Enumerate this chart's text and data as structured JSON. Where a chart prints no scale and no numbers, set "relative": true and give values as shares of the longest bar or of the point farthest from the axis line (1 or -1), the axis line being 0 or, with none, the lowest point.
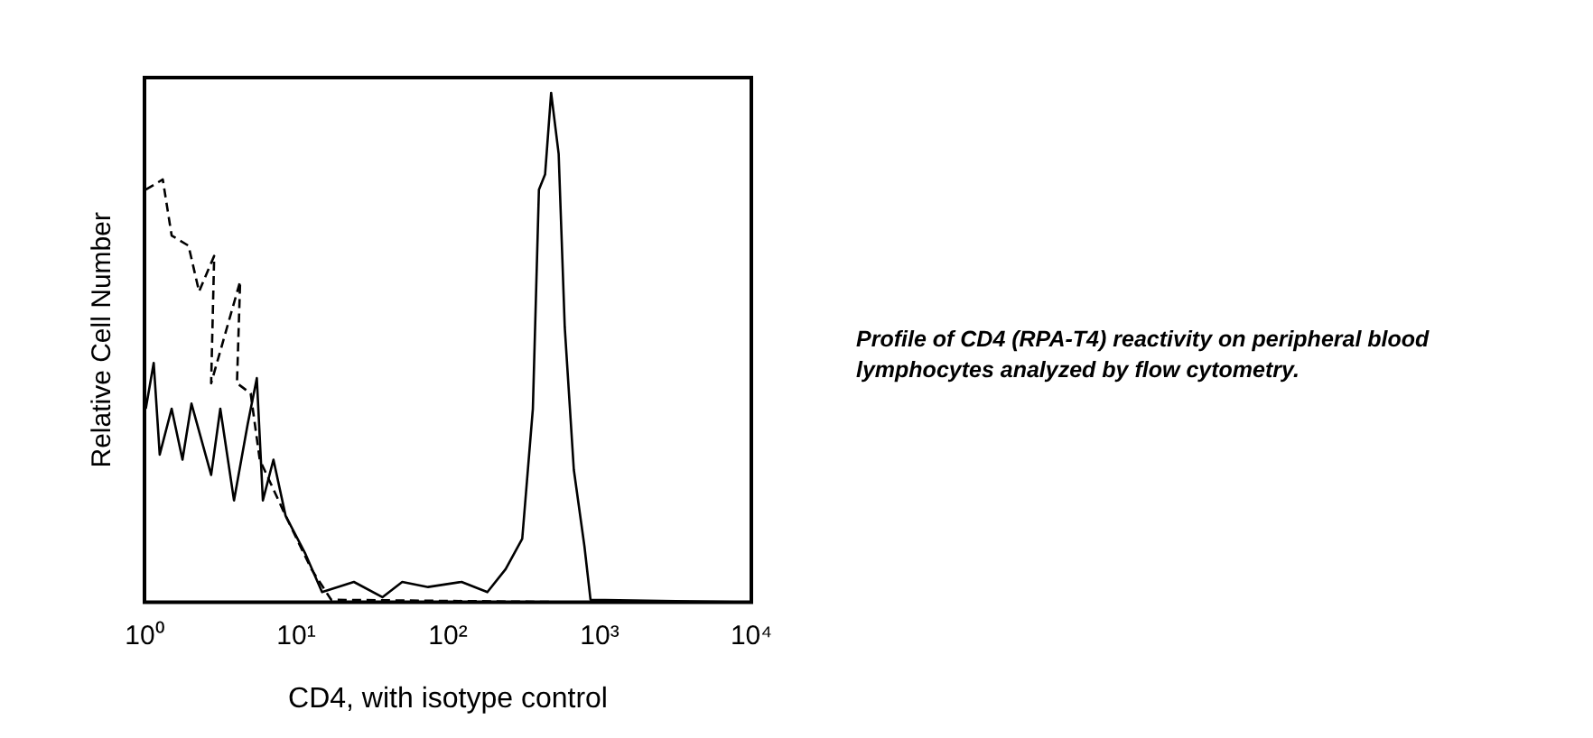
{
  "chart_data": {
    "type": "line",
    "relative": true,
    "xlabel": "CD4, with isotype control",
    "ylabel": "Relative Cell Number",
    "log": "x",
    "xlim": [
      1,
      10000
    ],
    "xticks": [
      {
        "value": 1,
        "label": "10⁰"
      },
      {
        "value": 10,
        "label": "10¹"
      },
      {
        "value": 100,
        "label": "10²"
      },
      {
        "value": 1000,
        "label": "10³"
      },
      {
        "value": 10000,
        "label": "10⁴"
      }
    ],
    "grid": false,
    "legend": false,
    "marker": "none",
    "tick_labels": "x",
    "series": [
      {
        "color": "#000000",
        "line_style": "solid",
        "x": [
          1.02,
          1.15,
          1.26,
          1.51,
          1.78,
          2.04,
          2.75,
          3.16,
          3.89,
          4.79,
          5.5,
          6.03,
          7.08,
          8.51,
          11.5,
          14.8,
          24,
          37,
          50,
          74,
          123,
          182,
          240,
          309,
          363,
          398,
          437,
          479,
          537,
          589,
          676,
          794,
          871,
          9800
        ],
        "values": [
          0.38,
          0.47,
          0.29,
          0.38,
          0.28,
          0.39,
          0.25,
          0.38,
          0.2,
          0.35,
          0.44,
          0.2,
          0.28,
          0.17,
          0.095,
          0.02,
          0.04,
          0.01,
          0.04,
          0.03,
          0.04,
          0.02,
          0.065,
          0.125,
          0.38,
          0.81,
          0.84,
          1,
          0.88,
          0.54,
          0.26,
          0.11,
          0.005,
          0
        ]
      },
      {
        "color": "#000000",
        "line_style": "dashed",
        "x": [
          1.02,
          1.32,
          1.51,
          1.95,
          2.29,
          2.88,
          2.75,
          4.27,
          4.07,
          5.01,
          5.75,
          8.51,
          12.6,
          17,
          871,
          9800
        ],
        "values": [
          0.81,
          0.83,
          0.72,
          0.7,
          0.61,
          0.68,
          0.43,
          0.63,
          0.43,
          0.41,
          0.28,
          0.17,
          0.065,
          0.005,
          0,
          0
        ]
      }
    ],
    "annotations": [
      "Profile of CD4 (RPA-T4) reactivity on peripheral blood lymphocytes analyzed by flow cytometry."
    ]
  }
}
